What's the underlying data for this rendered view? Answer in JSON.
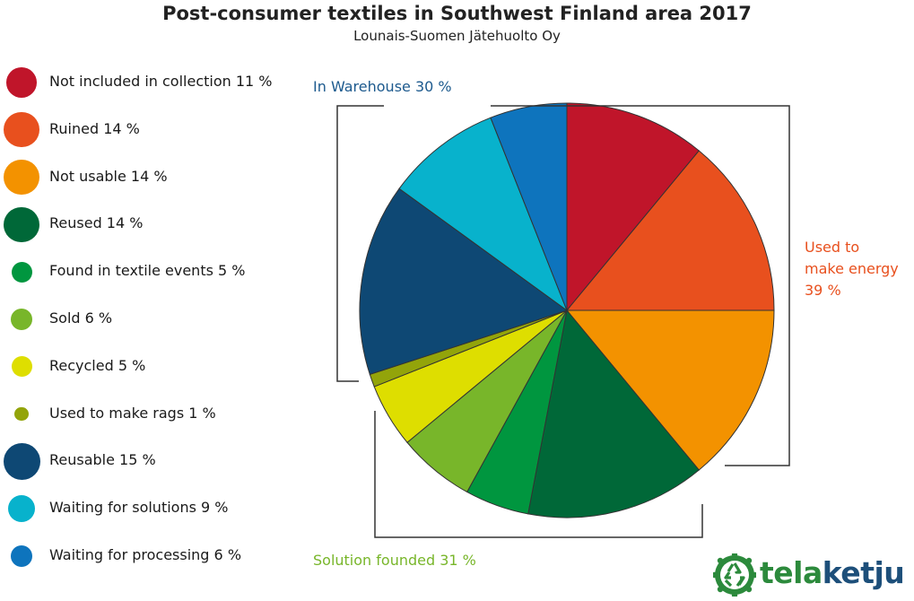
{
  "chart_data": {
    "type": "pie",
    "title": "Post-consumer textiles in Southwest Finland area 2017",
    "subtitle": "Lounais-Suomen Jätehuolto Oy",
    "slices": [
      {
        "label": "Not included in collection 11 %",
        "value": 11,
        "color": "#c0152a"
      },
      {
        "label": "Ruined 14 %",
        "value": 14,
        "color": "#e8501e"
      },
      {
        "label": "Not usable 14 %",
        "value": 14,
        "color": "#f39200"
      },
      {
        "label": "Reused 14 %",
        "value": 14,
        "color": "#006838"
      },
      {
        "label": "Found in textile events 5 %",
        "value": 5,
        "color": "#00963f"
      },
      {
        "label": "Sold 6 %",
        "value": 6,
        "color": "#78b62a"
      },
      {
        "label": "Recycled 5 %",
        "value": 5,
        "color": "#dede00"
      },
      {
        "label": "Used to make rags 1 %",
        "value": 1,
        "color": "#93a40a"
      },
      {
        "label": "Reusable 15 %",
        "value": 15,
        "color": "#0e4874"
      },
      {
        "label": "Waiting for solutions 9 %",
        "value": 9,
        "color": "#08b2cc"
      },
      {
        "label": "Waiting for processing 6 %",
        "value": 6,
        "color": "#0e74bd"
      }
    ],
    "groups": [
      {
        "label": "In Warehouse 30 %",
        "color": "#1d5a8e"
      },
      {
        "label_lines": [
          "Used to",
          "make energy",
          "39 %"
        ],
        "color": "#e8501e"
      },
      {
        "label": "Solution founded 31 %",
        "color": "#78b62a"
      }
    ]
  },
  "logo": {
    "text_tela": "tela",
    "text_ketju": "ketju",
    "colors": {
      "tela": "#2c8a3c",
      "ketju": "#1d4f7a"
    }
  }
}
